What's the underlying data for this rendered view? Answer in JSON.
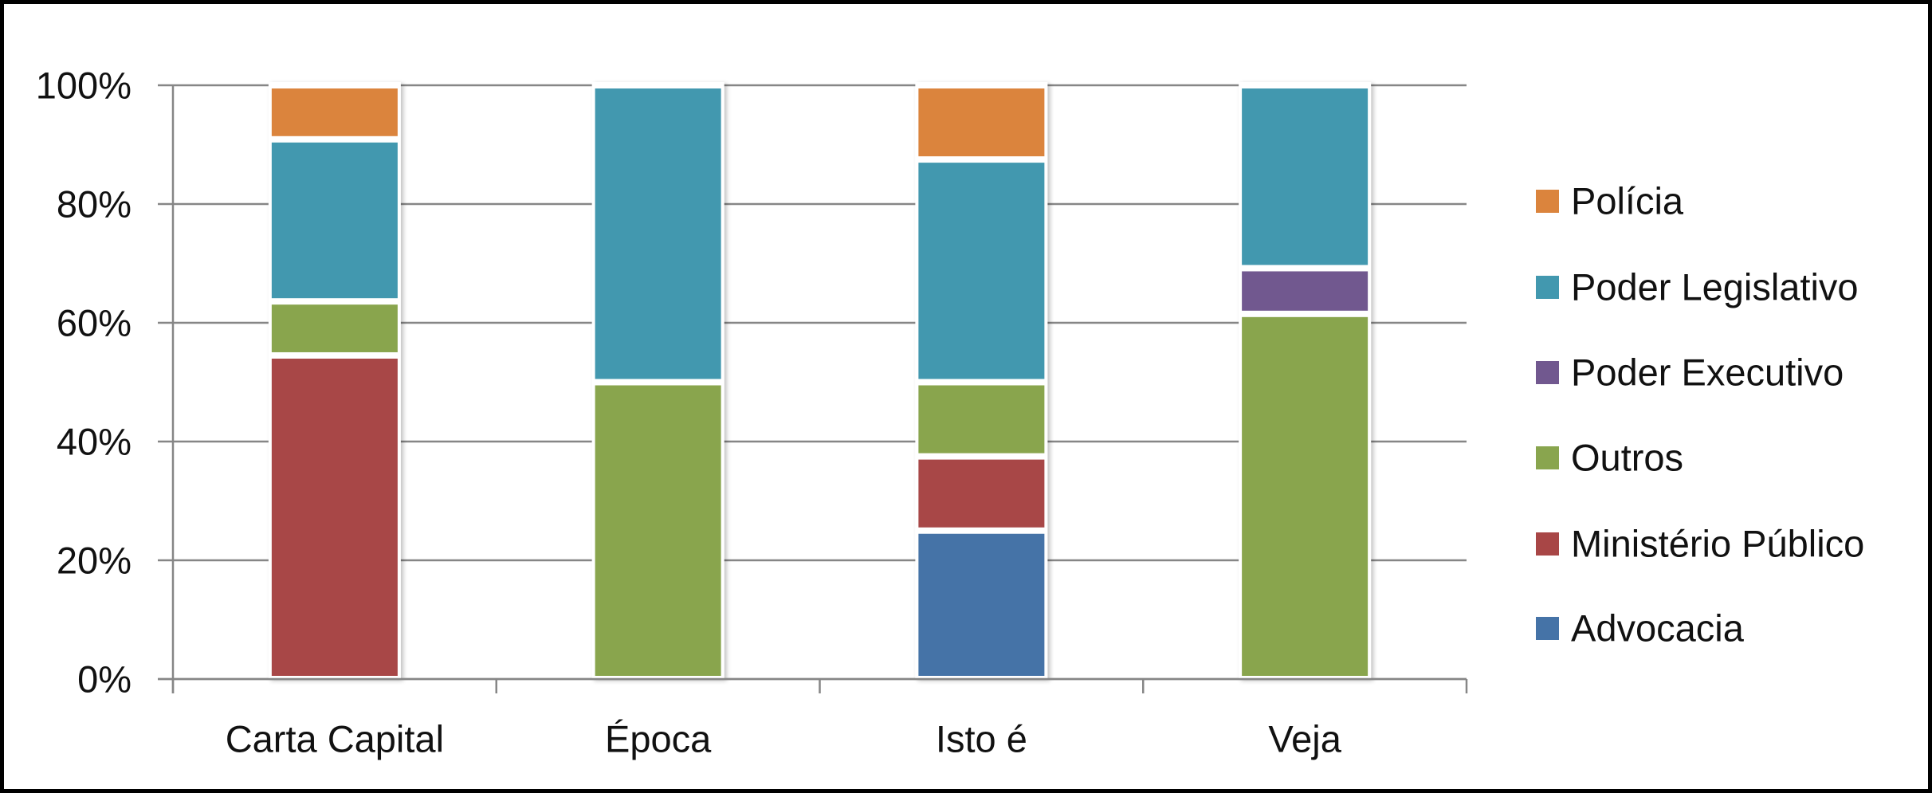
{
  "chart_data": {
    "type": "bar",
    "stacked": true,
    "percent_stacked": true,
    "title": "",
    "xlabel": "",
    "ylabel": "",
    "ylim": [
      0,
      100
    ],
    "y_ticks": [
      "0%",
      "20%",
      "40%",
      "60%",
      "80%",
      "100%"
    ],
    "grid": true,
    "legend_position": "right",
    "categories": [
      "Carta Capital",
      "Época",
      "Isto é",
      "Veja"
    ],
    "series": [
      {
        "name": "Advocacia",
        "color": "#4573A7",
        "values": [
          0,
          0,
          25.0,
          0
        ]
      },
      {
        "name": "Ministério Público",
        "color": "#A84646",
        "values": [
          54.5,
          0,
          12.5,
          0
        ]
      },
      {
        "name": "Outros",
        "color": "#89A54E",
        "values": [
          9.1,
          50.0,
          12.5,
          61.5
        ]
      },
      {
        "name": "Poder Executivo",
        "color": "#71588F",
        "values": [
          0,
          0,
          0,
          7.7
        ]
      },
      {
        "name": "Poder Legislativo",
        "color": "#4298AF",
        "values": [
          27.3,
          50.0,
          37.5,
          30.8
        ]
      },
      {
        "name": "Polícia",
        "color": "#DB843D",
        "values": [
          9.1,
          0,
          12.5,
          0
        ]
      }
    ],
    "legend_order": [
      "Polícia",
      "Poder Legislativo",
      "Poder Executivo",
      "Outros",
      "Ministério Público",
      "Advocacia"
    ]
  },
  "layout_colors": {
    "gridline": "#868686",
    "axis": "#868686",
    "frame_border": "#000000",
    "bar_outline": "#ffffff"
  }
}
